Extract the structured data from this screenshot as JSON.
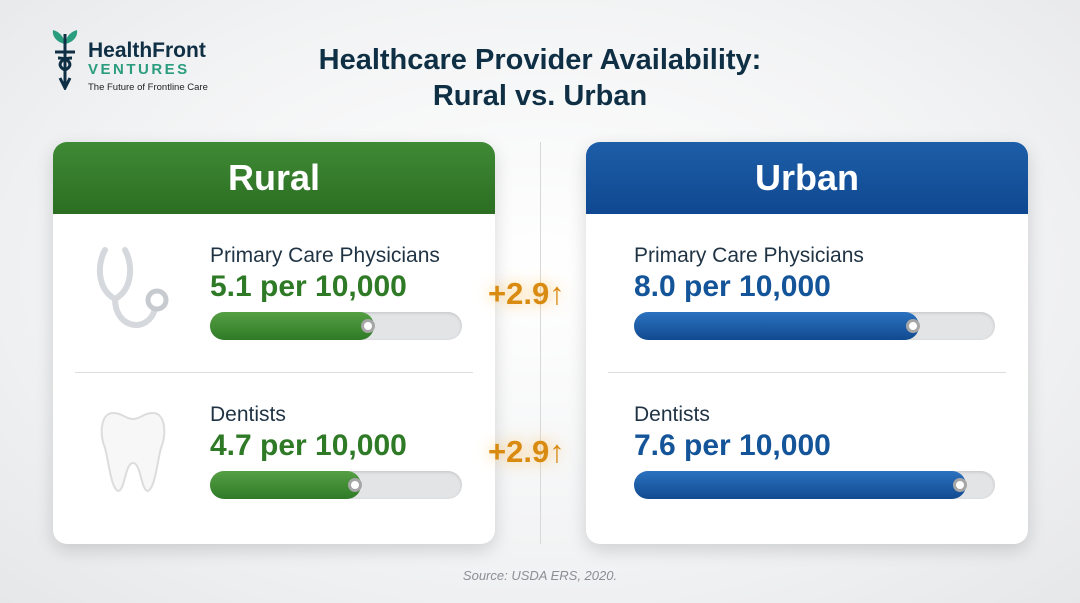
{
  "logo": {
    "name": "HealthFront",
    "sub": "VENTURES",
    "tagline": "The Future of Frontline Care"
  },
  "title": {
    "line1": "Healthcare Provider Availability:",
    "line2": "Rural vs. Urban"
  },
  "rural": {
    "heading": "Rural",
    "rows": [
      {
        "label": "Primary Care Physicians",
        "value": "5.1 per 10,000",
        "fill_pct": 65
      },
      {
        "label": "Dentists",
        "value": "4.7 per 10,000",
        "fill_pct": 60
      }
    ]
  },
  "urban": {
    "heading": "Urban",
    "rows": [
      {
        "label": "Primary Care Physicians",
        "value": "8.0 per 10,000",
        "fill_pct": 79
      },
      {
        "label": "Dentists",
        "value": "7.6 per 10,000",
        "fill_pct": 92
      }
    ]
  },
  "differences": [
    "+2.9↑",
    "+2.9↑"
  ],
  "source": "Source: USDA ERS, 2020.",
  "colors": {
    "rural": "#2f7a26",
    "urban": "#145499",
    "diff": "#d98a10"
  }
}
